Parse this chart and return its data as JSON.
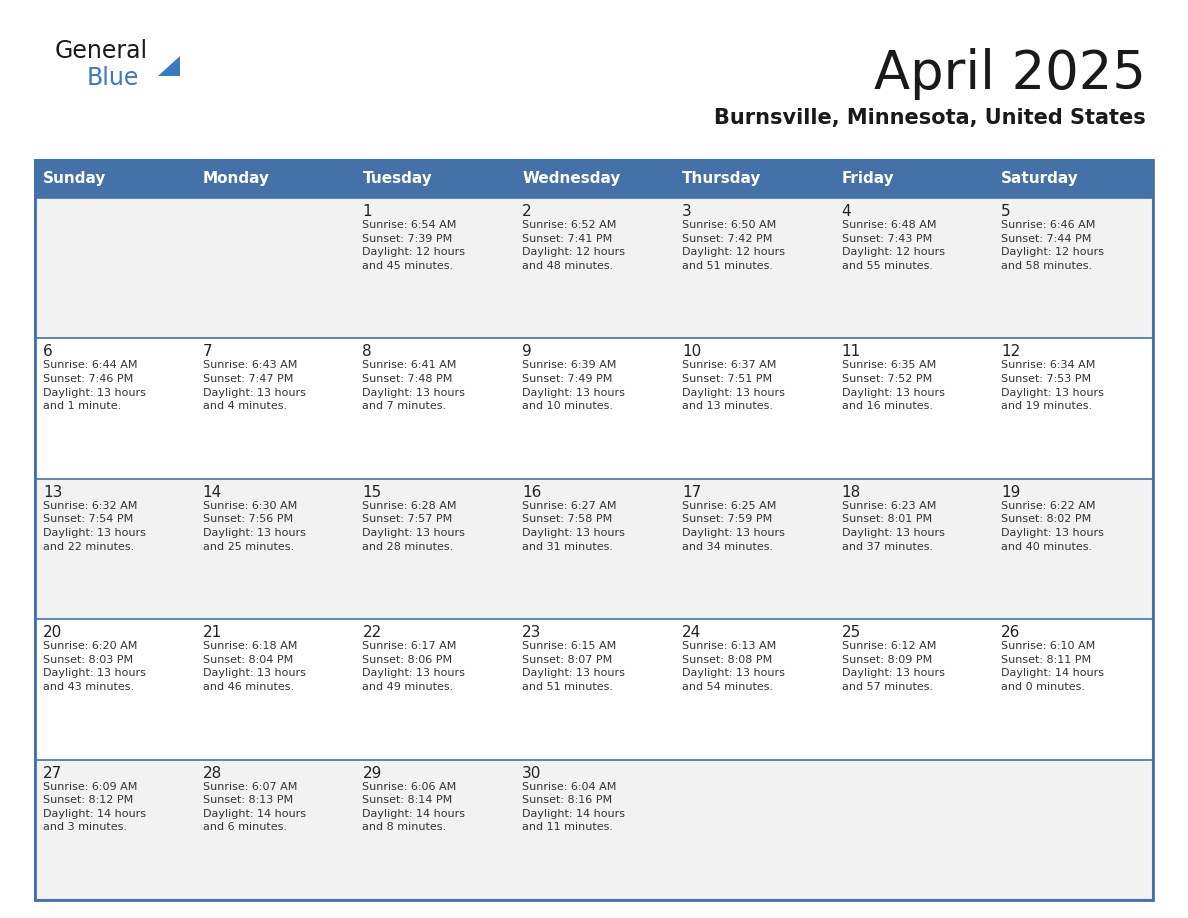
{
  "title": "April 2025",
  "subtitle": "Burnsville, Minnesota, United States",
  "header_bg": "#4472a8",
  "header_text_color": "#FFFFFF",
  "weekdays": [
    "Sunday",
    "Monday",
    "Tuesday",
    "Wednesday",
    "Thursday",
    "Friday",
    "Saturday"
  ],
  "row_colors": [
    "#f2f2f2",
    "#ffffff"
  ],
  "border_color": "#4472a8",
  "cell_border_color": "#4472a8",
  "text_color": "#333333",
  "day_num_color": "#222222",
  "logo_black": "#1a1a1a",
  "logo_blue": "#3a7abf",
  "triangle_blue": "#3a7abf",
  "calendar": [
    [
      "",
      "",
      "1\nSunrise: 6:54 AM\nSunset: 7:39 PM\nDaylight: 12 hours\nand 45 minutes.",
      "2\nSunrise: 6:52 AM\nSunset: 7:41 PM\nDaylight: 12 hours\nand 48 minutes.",
      "3\nSunrise: 6:50 AM\nSunset: 7:42 PM\nDaylight: 12 hours\nand 51 minutes.",
      "4\nSunrise: 6:48 AM\nSunset: 7:43 PM\nDaylight: 12 hours\nand 55 minutes.",
      "5\nSunrise: 6:46 AM\nSunset: 7:44 PM\nDaylight: 12 hours\nand 58 minutes."
    ],
    [
      "6\nSunrise: 6:44 AM\nSunset: 7:46 PM\nDaylight: 13 hours\nand 1 minute.",
      "7\nSunrise: 6:43 AM\nSunset: 7:47 PM\nDaylight: 13 hours\nand 4 minutes.",
      "8\nSunrise: 6:41 AM\nSunset: 7:48 PM\nDaylight: 13 hours\nand 7 minutes.",
      "9\nSunrise: 6:39 AM\nSunset: 7:49 PM\nDaylight: 13 hours\nand 10 minutes.",
      "10\nSunrise: 6:37 AM\nSunset: 7:51 PM\nDaylight: 13 hours\nand 13 minutes.",
      "11\nSunrise: 6:35 AM\nSunset: 7:52 PM\nDaylight: 13 hours\nand 16 minutes.",
      "12\nSunrise: 6:34 AM\nSunset: 7:53 PM\nDaylight: 13 hours\nand 19 minutes."
    ],
    [
      "13\nSunrise: 6:32 AM\nSunset: 7:54 PM\nDaylight: 13 hours\nand 22 minutes.",
      "14\nSunrise: 6:30 AM\nSunset: 7:56 PM\nDaylight: 13 hours\nand 25 minutes.",
      "15\nSunrise: 6:28 AM\nSunset: 7:57 PM\nDaylight: 13 hours\nand 28 minutes.",
      "16\nSunrise: 6:27 AM\nSunset: 7:58 PM\nDaylight: 13 hours\nand 31 minutes.",
      "17\nSunrise: 6:25 AM\nSunset: 7:59 PM\nDaylight: 13 hours\nand 34 minutes.",
      "18\nSunrise: 6:23 AM\nSunset: 8:01 PM\nDaylight: 13 hours\nand 37 minutes.",
      "19\nSunrise: 6:22 AM\nSunset: 8:02 PM\nDaylight: 13 hours\nand 40 minutes."
    ],
    [
      "20\nSunrise: 6:20 AM\nSunset: 8:03 PM\nDaylight: 13 hours\nand 43 minutes.",
      "21\nSunrise: 6:18 AM\nSunset: 8:04 PM\nDaylight: 13 hours\nand 46 minutes.",
      "22\nSunrise: 6:17 AM\nSunset: 8:06 PM\nDaylight: 13 hours\nand 49 minutes.",
      "23\nSunrise: 6:15 AM\nSunset: 8:07 PM\nDaylight: 13 hours\nand 51 minutes.",
      "24\nSunrise: 6:13 AM\nSunset: 8:08 PM\nDaylight: 13 hours\nand 54 minutes.",
      "25\nSunrise: 6:12 AM\nSunset: 8:09 PM\nDaylight: 13 hours\nand 57 minutes.",
      "26\nSunrise: 6:10 AM\nSunset: 8:11 PM\nDaylight: 14 hours\nand 0 minutes."
    ],
    [
      "27\nSunrise: 6:09 AM\nSunset: 8:12 PM\nDaylight: 14 hours\nand 3 minutes.",
      "28\nSunrise: 6:07 AM\nSunset: 8:13 PM\nDaylight: 14 hours\nand 6 minutes.",
      "29\nSunrise: 6:06 AM\nSunset: 8:14 PM\nDaylight: 14 hours\nand 8 minutes.",
      "30\nSunrise: 6:04 AM\nSunset: 8:16 PM\nDaylight: 14 hours\nand 11 minutes.",
      "",
      "",
      ""
    ]
  ]
}
